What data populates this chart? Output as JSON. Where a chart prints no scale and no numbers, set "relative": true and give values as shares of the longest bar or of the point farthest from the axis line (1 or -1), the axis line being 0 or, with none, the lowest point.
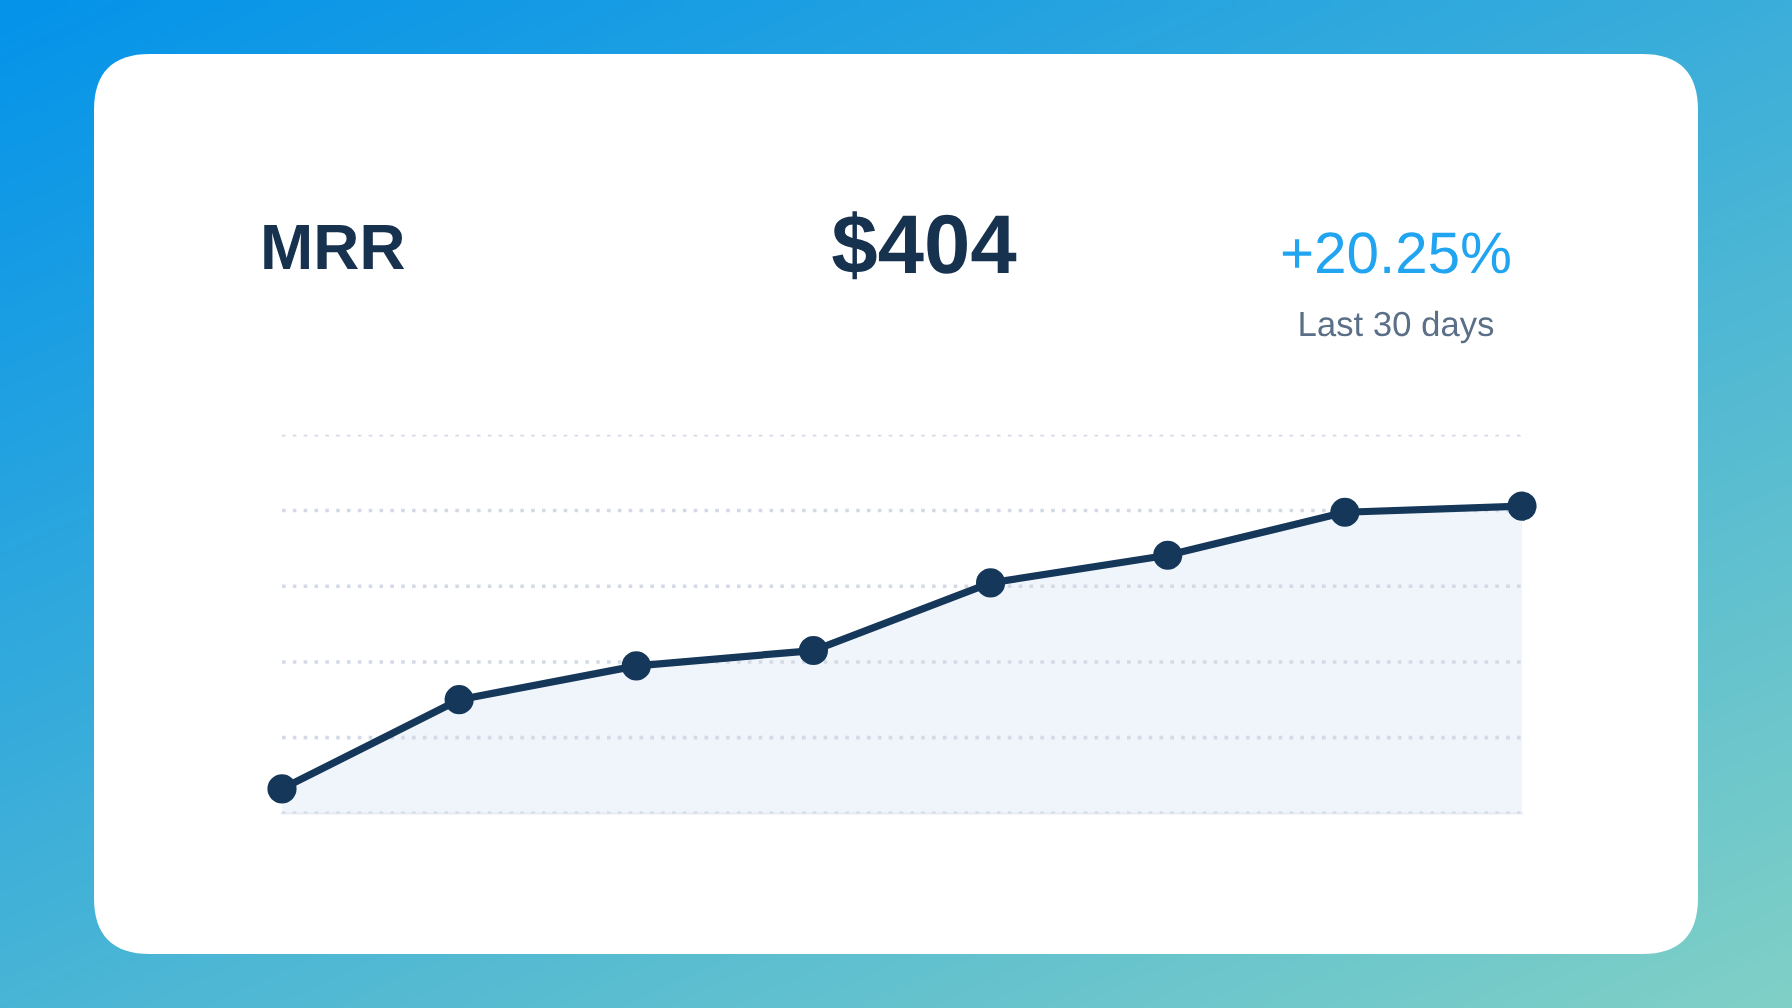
{
  "chart_data": {
    "type": "area",
    "title": "MRR",
    "annotations": [
      "$404",
      "+20.25%",
      "Last 30 days"
    ],
    "categories": [
      null,
      null,
      null,
      null,
      null,
      null,
      null,
      null
    ],
    "relative": true,
    "series": [
      {
        "color": "#15375a",
        "values": [
          0.08,
          0.37,
          0.48,
          0.53,
          0.75,
          0.84,
          0.98,
          1
        ]
      }
    ],
    "marker": "circle",
    "line_style": "solid",
    "grid": "y"
  }
}
